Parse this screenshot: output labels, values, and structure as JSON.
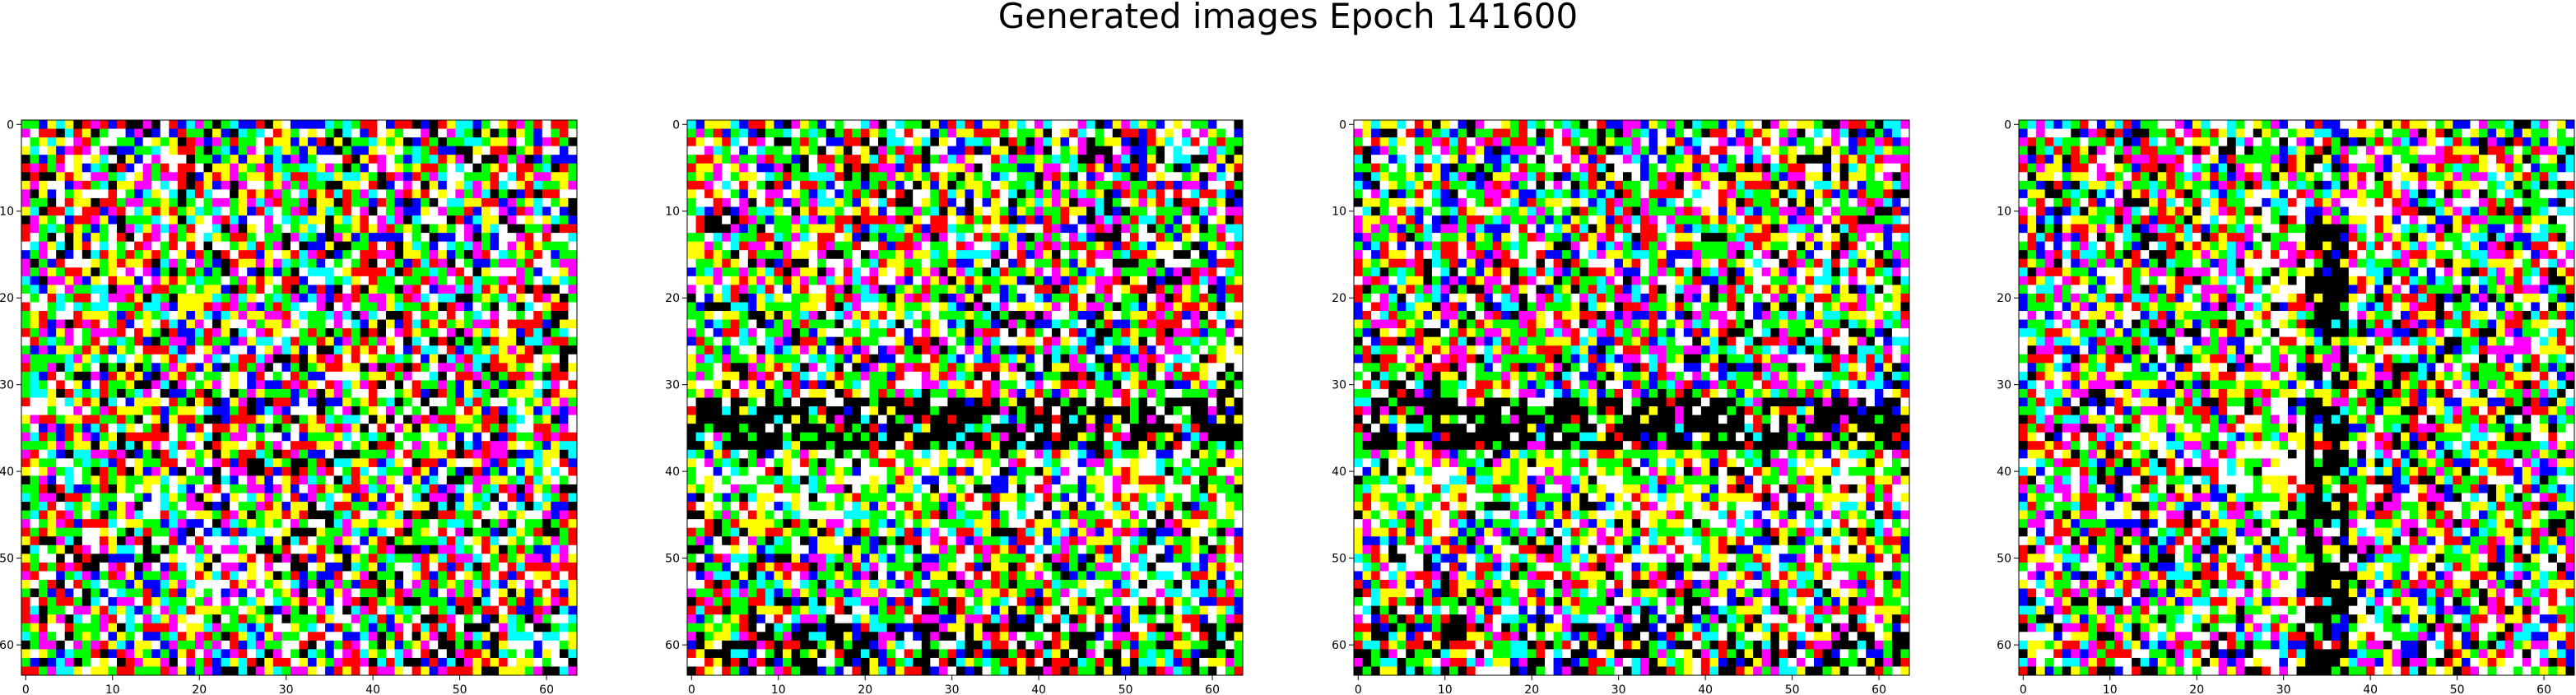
{
  "figure": {
    "title": "Generated images Epoch 141600"
  },
  "chart_data": [
    {
      "type": "heatmap",
      "name": "generated-image-1",
      "size": [
        64,
        64
      ],
      "xticks": [
        0,
        10,
        20,
        30,
        40,
        50,
        60
      ],
      "yticks": [
        0,
        10,
        20,
        30,
        40,
        50,
        60
      ],
      "xlim": [
        -0.5,
        63.5
      ],
      "ylim": [
        63.5,
        -0.5
      ],
      "pattern": "uniform-noise",
      "palette": [
        "#ff0000",
        "#00ff00",
        "#0000ff",
        "#ffff00",
        "#00ffff",
        "#ff00ff",
        "#ffffff",
        "#000000"
      ]
    },
    {
      "type": "heatmap",
      "name": "generated-image-2",
      "size": [
        64,
        64
      ],
      "xticks": [
        0,
        10,
        20,
        30,
        40,
        50,
        60
      ],
      "yticks": [
        0,
        10,
        20,
        30,
        40,
        50,
        60
      ],
      "xlim": [
        -0.5,
        63.5
      ],
      "ylim": [
        63.5,
        -0.5
      ],
      "pattern": "horizontal-dark-band",
      "band_rows": [
        32,
        37
      ],
      "palette": [
        "#ff0000",
        "#00ff00",
        "#0000ff",
        "#ffff00",
        "#00ffff",
        "#ff00ff",
        "#ffffff",
        "#000000"
      ]
    },
    {
      "type": "heatmap",
      "name": "generated-image-3",
      "size": [
        64,
        64
      ],
      "xticks": [
        0,
        10,
        20,
        30,
        40,
        50,
        60
      ],
      "yticks": [
        0,
        10,
        20,
        30,
        40,
        50,
        60
      ],
      "xlim": [
        -0.5,
        63.5
      ],
      "ylim": [
        63.5,
        -0.5
      ],
      "pattern": "horizontal-dark-band",
      "band_rows": [
        32,
        37
      ],
      "palette": [
        "#ff0000",
        "#00ff00",
        "#0000ff",
        "#ffff00",
        "#00ffff",
        "#ff00ff",
        "#ffffff",
        "#000000"
      ]
    },
    {
      "type": "heatmap",
      "name": "generated-image-4",
      "size": [
        64,
        64
      ],
      "xticks": [
        0,
        10,
        20,
        30,
        40,
        50,
        60
      ],
      "yticks": [
        0,
        10,
        20,
        30,
        40,
        50,
        60
      ],
      "xlim": [
        -0.5,
        63.5
      ],
      "ylim": [
        63.5,
        -0.5
      ],
      "pattern": "vertical-dark-band",
      "band_cols": [
        33,
        37
      ],
      "palette": [
        "#ff0000",
        "#00ff00",
        "#0000ff",
        "#ffff00",
        "#00ffff",
        "#ff00ff",
        "#ffffff",
        "#000000"
      ]
    }
  ]
}
